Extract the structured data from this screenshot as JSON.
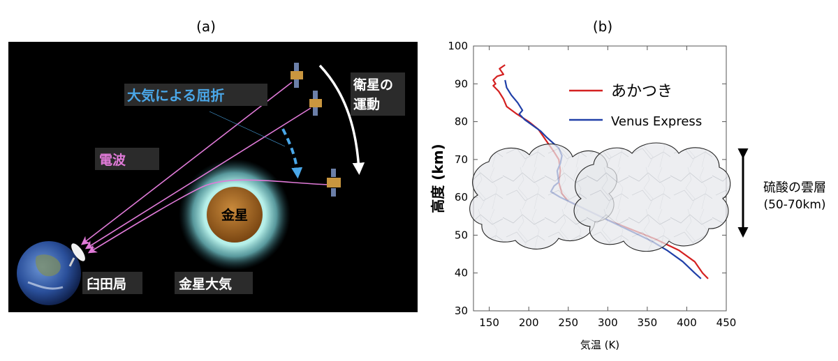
{
  "panel_a": {
    "label": "(a)",
    "refraction": "大気による屈折",
    "satellite_motion_line1": "衛星の",
    "satellite_motion_line2": "運動",
    "radio_wave": "電波",
    "venus": "金星",
    "venus_atmosphere": "金星大気",
    "station": "臼田局",
    "colors": {
      "background": "#000000",
      "radio": "#e07ad8",
      "refraction": "#4aa7e8",
      "venus": "#b8732a",
      "atmosphere": "#8fd4d4"
    }
  },
  "panel_b": {
    "label": "(b)",
    "cloud_label_line1": "硫酸の雲層",
    "cloud_label_line2": "(50-70km)"
  },
  "chart_data": {
    "type": "line",
    "xlabel": "気温 (K)",
    "ylabel": "高度 (km)",
    "xlim": [
      130,
      450
    ],
    "ylim": [
      30,
      100
    ],
    "xticks": [
      150,
      200,
      250,
      300,
      350,
      400,
      450
    ],
    "yticks": [
      30,
      40,
      50,
      60,
      70,
      80,
      90,
      100
    ],
    "legend_position": "top-right",
    "series": [
      {
        "name": "あかつき",
        "color": "#d42020",
        "x": [
          170,
          163,
          168,
          160,
          155,
          158,
          155,
          162,
          168,
          172,
          185,
          200,
          212,
          222,
          232,
          238,
          240,
          238,
          242,
          250,
          270,
          300,
          330,
          360,
          390,
          410,
          420,
          427
        ],
        "y": [
          95,
          94,
          92.5,
          92,
          91,
          90,
          89.5,
          88,
          86,
          84,
          82,
          80,
          78,
          75,
          72,
          70,
          67,
          64,
          61,
          59,
          57,
          54,
          51.5,
          49,
          46,
          43,
          40,
          38.5
        ]
      },
      {
        "name": "Venus Express",
        "color": "#2040a8",
        "x": [
          170,
          172,
          178,
          186,
          192,
          188,
          195,
          205,
          215,
          222,
          230,
          238,
          242,
          240,
          236,
          238,
          232,
          228,
          240,
          270,
          300,
          330,
          355,
          375,
          395,
          410,
          418
        ],
        "y": [
          91,
          89,
          87,
          85,
          83,
          82,
          80.5,
          79,
          77.5,
          76,
          74.5,
          73,
          71,
          69,
          67,
          64,
          63,
          61.5,
          60,
          57,
          54,
          51,
          48.5,
          46,
          43,
          40,
          38.5
        ]
      }
    ]
  }
}
